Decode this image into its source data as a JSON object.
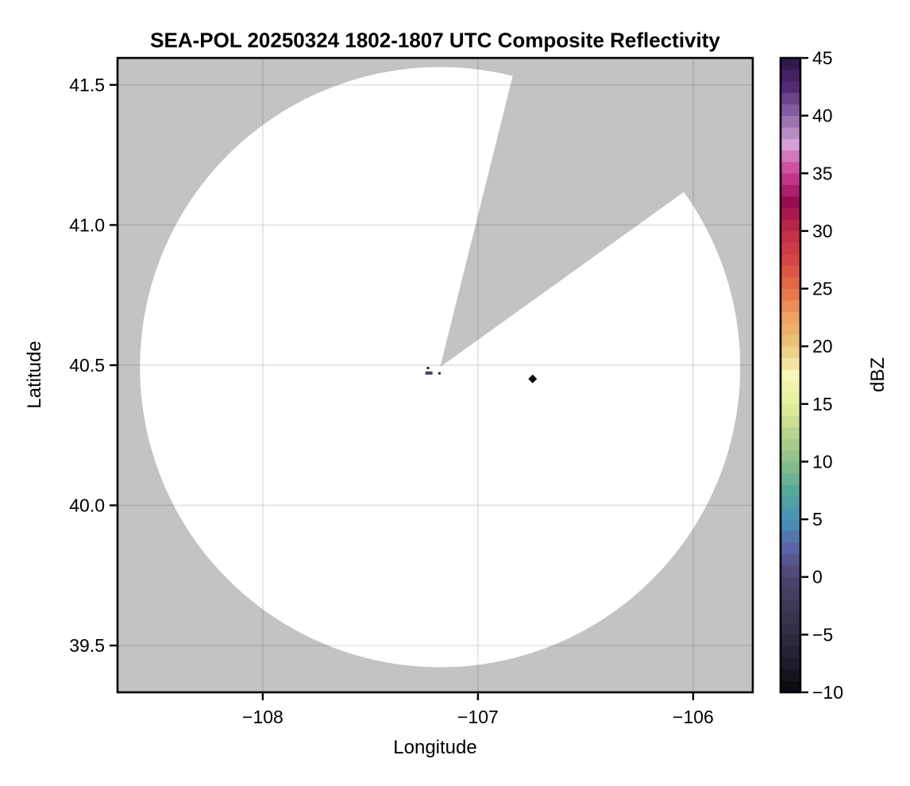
{
  "chart_data": {
    "type": "heatmap",
    "subtype": "radar-ppi-composite-reflectivity-map",
    "title": "SEA-POL 20250324 1802-1807 UTC Composite Reflectivity",
    "xlabel": "Longitude",
    "ylabel": "Latitude",
    "xlim": [
      -108.675,
      -105.723
    ],
    "ylim": [
      39.333,
      41.596
    ],
    "grid": true,
    "xticks": [
      {
        "value": -108,
        "label": "−108"
      },
      {
        "value": -107,
        "label": "−107"
      },
      {
        "value": -106,
        "label": "−106"
      }
    ],
    "yticks": [
      {
        "value": 39.5,
        "label": "39.5"
      },
      {
        "value": 40.0,
        "label": "40.0"
      },
      {
        "value": 40.5,
        "label": "40.5"
      },
      {
        "value": 41.0,
        "label": "41.0"
      },
      {
        "value": 41.5,
        "label": "41.5"
      }
    ],
    "colors": {
      "no_data": "#c3c3c3",
      "coverage": "#ffffff",
      "gridline": "rgba(0,0,0,0.13)",
      "spine": "#000000"
    },
    "radar": {
      "center_lon": -107.176,
      "center_lat": 40.493,
      "coverage_radius_deg_lat": 1.0705,
      "blocked_sector_azimuth_deg": [
        14.0,
        54.3
      ]
    },
    "colorbar": {
      "label": "dBZ",
      "vmin": -10,
      "vmax": 45,
      "level_step": 1,
      "ticks": [
        {
          "value": 45,
          "label": "45"
        },
        {
          "value": 40,
          "label": "40"
        },
        {
          "value": 35,
          "label": "35"
        },
        {
          "value": 30,
          "label": "30"
        },
        {
          "value": 25,
          "label": "25"
        },
        {
          "value": 20,
          "label": "20"
        },
        {
          "value": 15,
          "label": "15"
        },
        {
          "value": 10,
          "label": "10"
        },
        {
          "value": 5,
          "label": "5"
        },
        {
          "value": 0,
          "label": "0"
        },
        {
          "value": -5,
          "label": "−5"
        },
        {
          "value": -10,
          "label": "−10"
        }
      ],
      "stops": [
        [
          -10,
          "#08070c"
        ],
        [
          -7.5,
          "#1f1b2b"
        ],
        [
          -5,
          "#302b41"
        ],
        [
          -2.5,
          "#3f3858"
        ],
        [
          0,
          "#4d4571"
        ],
        [
          2.5,
          "#5b64a4"
        ],
        [
          5,
          "#4793ba"
        ],
        [
          7.5,
          "#58a89b"
        ],
        [
          10,
          "#8dc089"
        ],
        [
          12.5,
          "#b9d58d"
        ],
        [
          15,
          "#e5ee9f"
        ],
        [
          17.5,
          "#f6f7b8"
        ],
        [
          20,
          "#edc87c"
        ],
        [
          22.5,
          "#eea263"
        ],
        [
          25,
          "#e76f48"
        ],
        [
          27.5,
          "#d44645"
        ],
        [
          30,
          "#c02c49"
        ],
        [
          32.5,
          "#9a0a52"
        ],
        [
          35,
          "#cd3d94"
        ],
        [
          37.5,
          "#d5a0d8"
        ],
        [
          40,
          "#8f68a9"
        ],
        [
          42.5,
          "#532a76"
        ],
        [
          45,
          "#2a1445"
        ]
      ]
    },
    "echo_marks": [
      {
        "shape": "dot",
        "lon": -107.232,
        "lat": 40.49,
        "approx_dbz": -7,
        "color": "#26222e",
        "w": 3,
        "h": 3
      },
      {
        "shape": "dash",
        "lon": -107.228,
        "lat": 40.472,
        "approx_dbz": 0,
        "color": "#474066",
        "w": 9,
        "h": 4
      },
      {
        "shape": "dot",
        "lon": -107.179,
        "lat": 40.471,
        "approx_dbz": -7,
        "color": "#2a2438",
        "w": 3,
        "h": 3
      },
      {
        "shape": "diamond",
        "lon": -106.746,
        "lat": 40.451,
        "approx_dbz": -10,
        "color": "#0a0a0a",
        "w": 11,
        "h": 11
      }
    ]
  }
}
